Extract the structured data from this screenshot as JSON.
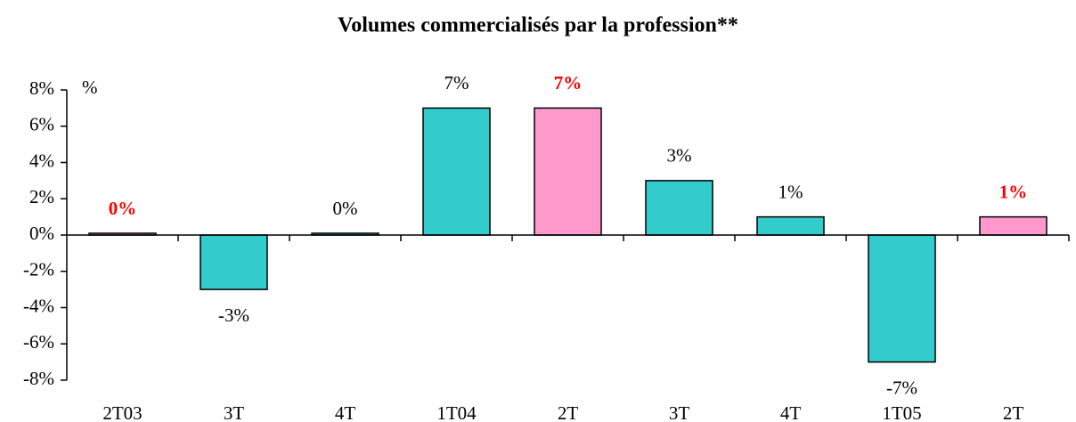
{
  "chart_data": {
    "type": "bar",
    "title": "Volumes commercialisés par la profession**",
    "y_unit_label": "%",
    "categories": [
      "2T03",
      "3T",
      "4T",
      "1T04",
      "2T",
      "3T",
      "4T",
      "1T05",
      "2T"
    ],
    "values": [
      0.1,
      -3,
      0.1,
      7,
      7,
      3,
      1,
      -7,
      1
    ],
    "value_labels": [
      "0%",
      "-3%",
      "0%",
      "7%",
      "7%",
      "3%",
      "1%",
      "-7%",
      "1%"
    ],
    "colors": [
      "#FF99CC",
      "#33CCCC",
      "#33CCCC",
      "#33CCCC",
      "#FF99CC",
      "#33CCCC",
      "#33CCCC",
      "#33CCCC",
      "#FF99CC"
    ],
    "label_colors": [
      "#FF0000",
      "#000000",
      "#000000",
      "#000000",
      "#FF0000",
      "#000000",
      "#000000",
      "#000000",
      "#FF0000"
    ],
    "ylim": [
      -8,
      8
    ],
    "yticks": [
      {
        "value": -8,
        "label": "-8%"
      },
      {
        "value": -6,
        "label": "-6%"
      },
      {
        "value": -4,
        "label": "-4%"
      },
      {
        "value": -2,
        "label": "-2%"
      },
      {
        "value": 0,
        "label": "0%"
      },
      {
        "value": 2,
        "label": "2%"
      },
      {
        "value": 4,
        "label": "4%"
      },
      {
        "value": 6,
        "label": "6%"
      },
      {
        "value": 8,
        "label": "8%"
      }
    ],
    "grid": false
  }
}
